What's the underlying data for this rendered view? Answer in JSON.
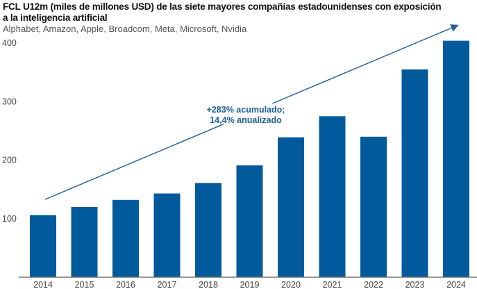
{
  "chart_data": {
    "type": "bar",
    "title": "FCL U12m (miles de millones USD) de las siete mayores compañías estadounidenses con exposición a la inteligencia artificial",
    "title_lines": [
      "FCL U12m (miles de millones USD) de las siete mayores compañías estadounidenses con exposición",
      "a la inteligencia artificial"
    ],
    "subtitle": "Alphabet, Amazon, Apple, Broadcom, Meta, Microsoft, Nvidia",
    "categories": [
      "2014",
      "2015",
      "2016",
      "2017",
      "2018",
      "2019",
      "2020",
      "2021",
      "2022",
      "2023",
      "2024"
    ],
    "values": [
      106,
      120,
      132,
      143,
      161,
      191,
      239,
      275,
      240,
      355,
      404
    ],
    "yticks": [
      100,
      200,
      300,
      400
    ],
    "ylim": [
      0,
      420
    ],
    "grid": false,
    "bar_color": "#005a9c",
    "annotation": [
      "+283% acumulado;",
      "14,4% anualizado"
    ],
    "xlabel": "",
    "ylabel": ""
  }
}
